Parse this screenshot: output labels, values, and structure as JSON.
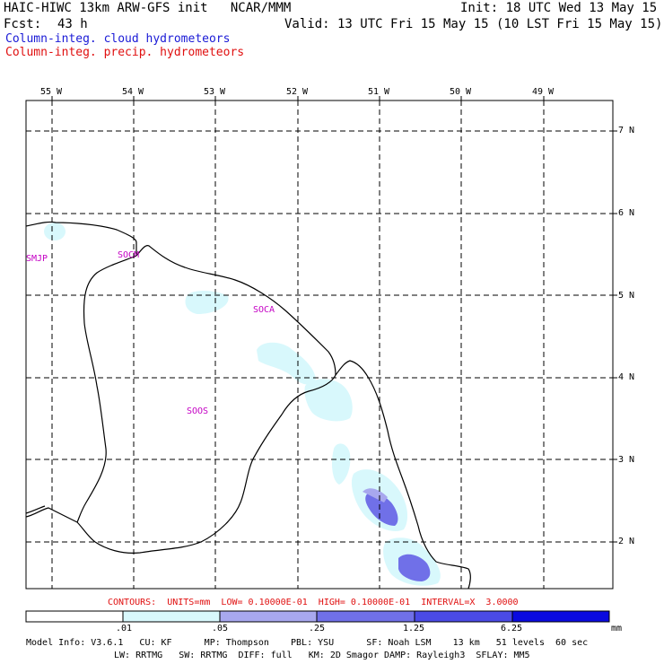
{
  "header": {
    "title_left": "HAIC-HIWC 13km ARW-GFS init   NCAR/MMM",
    "init": "Init: 18 UTC Wed 13 May 15",
    "fcst_label": "Fcst:",
    "fcst_value": "43 h",
    "valid": "Valid: 13 UTC Fri 15 May 15 (10 LST Fri 15 May 15)",
    "legend_cloud": "Column-integ. cloud hydrometeors",
    "legend_precip": "Column-integ. precip. hydrometeors"
  },
  "map": {
    "lon_labels": [
      "55 W",
      "54 W",
      "53 W",
      "52 W",
      "51 W",
      "50 W",
      "49 W"
    ],
    "lat_labels": [
      "7 N",
      "6 N",
      "5 N",
      "4 N",
      "3 N",
      "2 N"
    ],
    "stations": [
      "SMJP",
      "SOCM",
      "SOCA",
      "SOOS"
    ],
    "colors": {
      "cloud_light": "#d8f8fc",
      "cloud_med": "#a8a8ee",
      "cloud_dark": "#7070e8",
      "coast": "#000000",
      "grid": "#000000",
      "station": "#c400c4"
    }
  },
  "contours_line": "CONTOURS:  UNITS=mm  LOW= 0.10000E-01  HIGH= 0.10000E-01  INTERVAL=X  3.0000",
  "colorbar": {
    "labels": [
      ".01",
      ".05",
      ".25",
      "1.25",
      "6.25"
    ],
    "unit": "mm",
    "colors": [
      "#ffffff",
      "#d8f8fc",
      "#a8a8ee",
      "#7070e8",
      "#4a4ae6",
      "#0a0ae0"
    ]
  },
  "model_info": {
    "line1": "Model Info: V3.6.1   CU: KF      MP: Thompson    PBL: YSU      SF: Noah LSM    13 km   51 levels  60 sec",
    "line2": "LW: RRTMG   SW: RRTMG  DIFF: full   KM: 2D Smagor DAMP: Rayleigh3  SFLAY: MM5"
  }
}
